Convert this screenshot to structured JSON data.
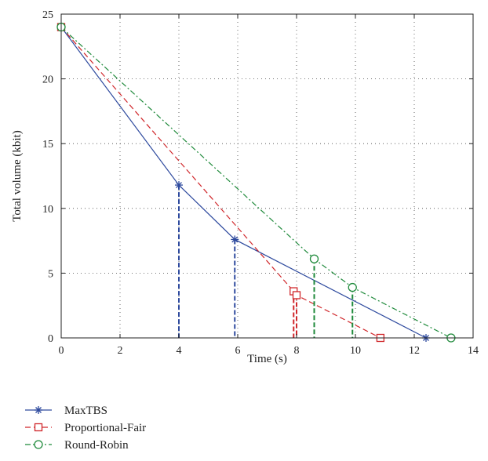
{
  "chart_data": {
    "type": "line",
    "title": "",
    "xlabel": "Time (s)",
    "ylabel": "Total volume (kbit)",
    "xlim": [
      0,
      14
    ],
    "ylim": [
      0,
      25
    ],
    "xticks": [
      0,
      2,
      4,
      6,
      8,
      10,
      12,
      14
    ],
    "yticks": [
      0,
      5,
      10,
      15,
      20,
      25
    ],
    "grid": true,
    "legend_position": "bottom-left outside",
    "series": [
      {
        "name": "MaxTBS",
        "color": "#2e4a9e",
        "line_style": "solid",
        "marker": "asterisk",
        "x": [
          0,
          4.0,
          5.9,
          12.4
        ],
        "y": [
          24,
          11.8,
          7.6,
          0
        ],
        "drop_lines_at": [
          4.0,
          5.9
        ]
      },
      {
        "name": "Proportional-Fair",
        "color": "#d0262a",
        "line_style": "dashed",
        "marker": "square",
        "x": [
          0,
          7.9,
          8.0,
          10.85
        ],
        "y": [
          24,
          3.6,
          3.3,
          0
        ],
        "drop_lines_at": [
          7.9,
          8.0
        ]
      },
      {
        "name": "Round-Robin",
        "color": "#1f8a3b",
        "line_style": "dashdot",
        "marker": "circle",
        "x": [
          0,
          8.6,
          9.9,
          13.25
        ],
        "y": [
          24,
          6.1,
          3.9,
          0
        ],
        "drop_lines_at": [
          8.6,
          9.9
        ]
      }
    ]
  }
}
